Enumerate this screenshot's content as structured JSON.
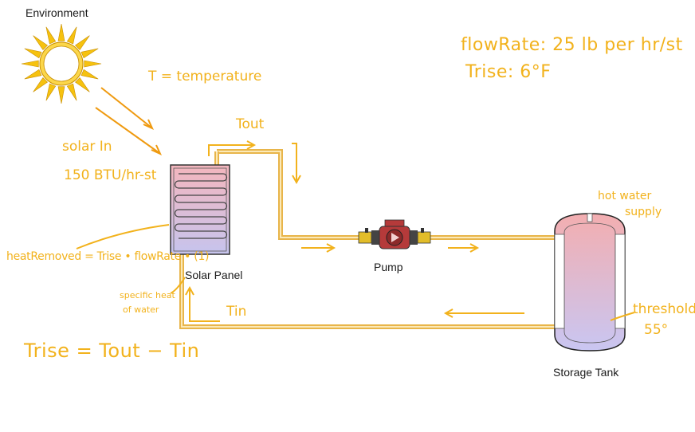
{
  "labels": {
    "environment": "Environment",
    "solar_panel": "Solar Panel",
    "pump": "Pump",
    "storage_tank": "Storage Tank"
  },
  "notes": {
    "flow_rate": "flowRate: 25 lb per hr/st",
    "t_rise_value": "Trise: 6°F",
    "t_def": "T = temperature",
    "solar_in_1": "solar In",
    "solar_in_2": "150 BTU/hr-st",
    "t_out": "Tout",
    "t_in": "Tin",
    "hot_water_1": "hot water",
    "hot_water_2": "supply",
    "threshold_1": "threshold",
    "threshold_2": "55°",
    "heat_removed": "heatRemoved = Trise • flowRate • (1)",
    "specific_heat_1": "specific heat",
    "specific_heat_2": "of water",
    "t_rise_formula": "Trise = Tout − Tin"
  },
  "colors": {
    "pipe": "#e8b54a",
    "pipe_light": "#fbe9b8",
    "annotation": "#f2b21c",
    "sun": "#f6c20f",
    "sun_core": "#fbd64a",
    "panel_top": "#f4b6bd",
    "panel_bottom": "#c6c4ee",
    "pump_red": "#b53a3a",
    "valve_yellow": "#e2bd2a",
    "tank_top": "#f3aeb0",
    "tank_bottom": "#c9c6f2"
  }
}
